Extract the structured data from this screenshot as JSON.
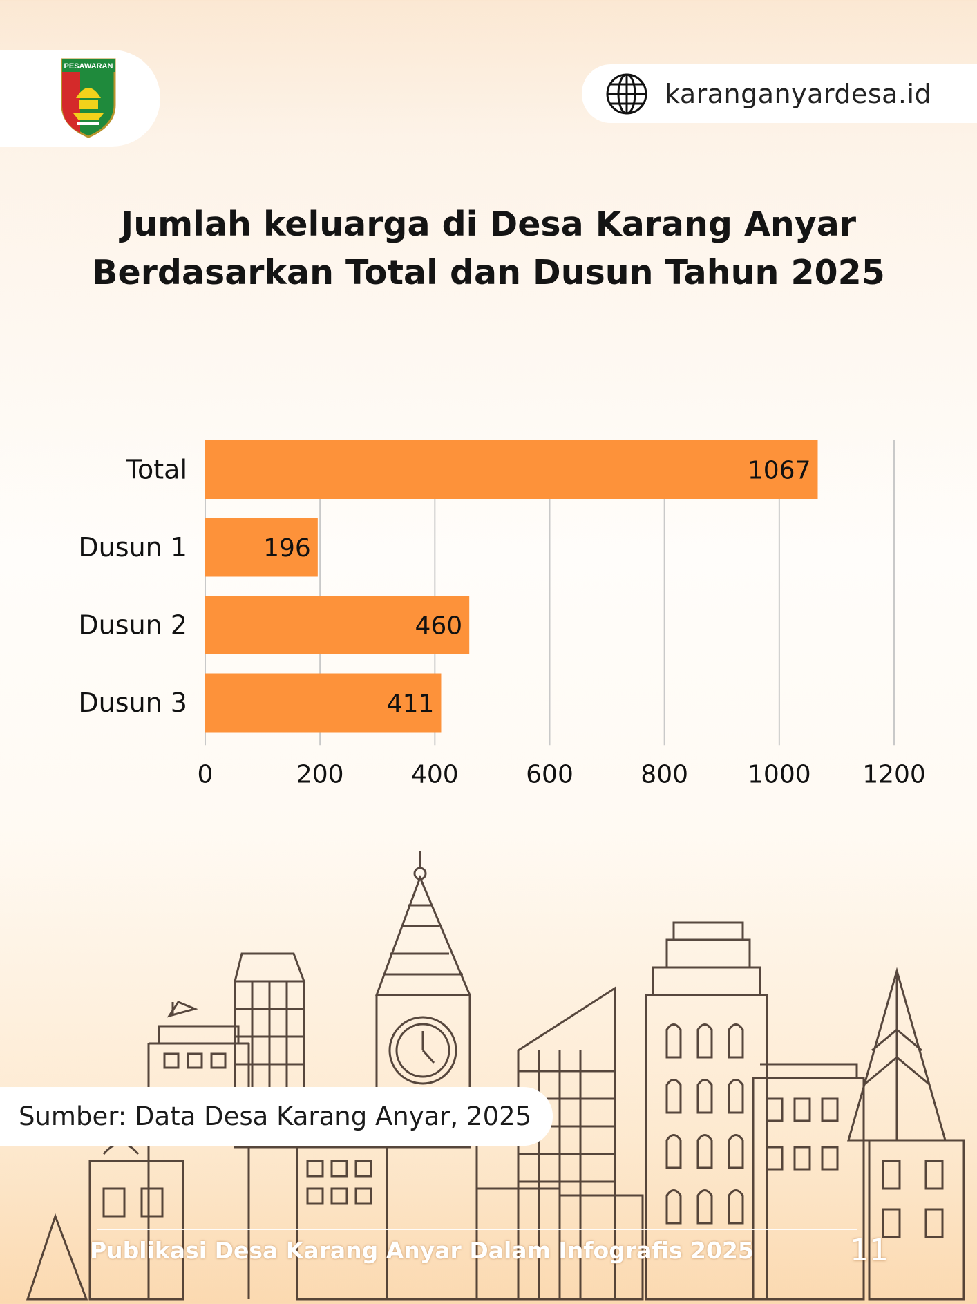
{
  "header": {
    "logo_text": "PESAWARAN",
    "website": "karanganyardesa.id"
  },
  "title": {
    "line1": "Jumlah keluarga di Desa Karang Anyar",
    "line2": "Berdasarkan Total dan Dusun Tahun 2025"
  },
  "chart_data": {
    "type": "bar",
    "orientation": "horizontal",
    "categories": [
      "Total",
      "Dusun 1",
      "Dusun 2",
      "Dusun 3"
    ],
    "values": [
      1067,
      196,
      460,
      411
    ],
    "xlim": [
      0,
      1200
    ],
    "xticks": [
      "0",
      "200",
      "400",
      "600",
      "800",
      "1000",
      "1200"
    ],
    "grid": true,
    "bar_color": "#fd923a",
    "title": "Jumlah keluarga di Desa Karang Anyar Berdasarkan Total dan Dusun Tahun 2025"
  },
  "source": "Sumber: Data Desa Karang Anyar, 2025",
  "footer": {
    "text": "Publikasi Desa Karang Anyar Dalam Infografis 2025",
    "page_number": "11"
  },
  "colors": {
    "accent": "#fd923a",
    "text": "#141414",
    "background": "#fdf3e8"
  }
}
